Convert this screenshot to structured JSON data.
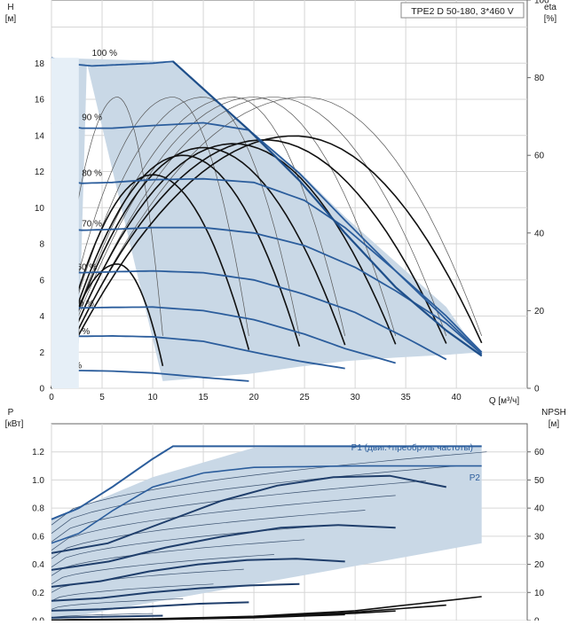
{
  "chart_data": [
    {
      "type": "line",
      "title": "TPE2 D 50-180, 3*460 V",
      "xlabel": "Q [м³/ч]",
      "ylabel_line1": "H",
      "ylabel_line2": "[м]",
      "y2label_line1": "eta",
      "y2label_line2": "[%]",
      "xlim": [
        0,
        47
      ],
      "ylim": [
        0,
        21.5
      ],
      "y2lim": [
        0,
        100
      ],
      "x_ticks": [
        0,
        5,
        10,
        15,
        20,
        25,
        30,
        35,
        40
      ],
      "y_ticks": [
        0,
        2,
        4,
        6,
        8,
        10,
        12,
        14,
        16,
        18
      ],
      "y2_ticks": [
        0,
        20,
        40,
        60,
        80,
        100
      ],
      "grid": true,
      "operating_range": {
        "x": [
          0,
          2.7,
          3.5,
          11,
          19.5,
          24.5,
          29,
          34,
          39,
          42.5,
          42.5,
          39,
          34,
          29,
          24.5,
          19.5,
          12,
          0
        ],
        "y": [
          0,
          2.5,
          18.0,
          0.4,
          0.8,
          1.2,
          1.5,
          1.7,
          1.85,
          2.0,
          1.7,
          4.5,
          7.0,
          9.5,
          12.0,
          14.3,
          18.1,
          18.3
        ]
      },
      "series": [
        {
          "name": "100 %",
          "x": [
            0,
            2,
            4,
            6,
            8,
            10,
            12,
            19.5,
            24.5,
            29,
            34,
            39,
            42.5
          ],
          "y": [
            18.3,
            17.95,
            17.85,
            17.9,
            17.95,
            18.0,
            18.1,
            14.3,
            11.5,
            8.6,
            5.6,
            3.2,
            1.8
          ]
        },
        {
          "name": "90 %",
          "x": [
            0,
            3,
            6,
            10,
            15,
            19.5,
            24.5,
            29,
            34,
            39,
            42.5
          ],
          "y": [
            14.7,
            14.4,
            14.4,
            14.55,
            14.7,
            14.3,
            11.9,
            9.3,
            6.5,
            3.8,
            1.9
          ]
        },
        {
          "name": "80 %",
          "x": [
            0,
            3,
            6,
            10,
            15,
            20,
            25,
            29,
            34,
            39,
            42.5
          ],
          "y": [
            11.6,
            11.35,
            11.4,
            11.55,
            11.6,
            11.4,
            10.4,
            8.9,
            6.5,
            4.0,
            2.0
          ]
        },
        {
          "name": "70 %",
          "x": [
            0,
            3,
            6,
            10,
            15,
            20,
            25,
            30,
            34,
            39,
            42.5
          ],
          "y": [
            8.9,
            8.75,
            8.8,
            8.9,
            8.9,
            8.6,
            7.9,
            6.7,
            5.4,
            3.6,
            1.9
          ]
        },
        {
          "name": "60 %",
          "x": [
            0,
            3,
            6,
            10,
            15,
            20,
            25,
            30,
            35,
            39
          ],
          "y": [
            6.5,
            6.4,
            6.45,
            6.5,
            6.4,
            6.0,
            5.2,
            4.2,
            2.8,
            1.6
          ]
        },
        {
          "name": "50 %",
          "x": [
            0,
            3,
            6,
            10,
            15,
            20,
            25,
            29,
            34
          ],
          "y": [
            4.5,
            4.45,
            4.48,
            4.5,
            4.3,
            3.8,
            3.0,
            2.2,
            1.4
          ]
        },
        {
          "name": "40 %",
          "x": [
            0,
            3,
            6,
            10,
            15,
            20,
            24.5,
            29
          ],
          "y": [
            2.9,
            2.88,
            2.9,
            2.85,
            2.6,
            2.0,
            1.5,
            1.1
          ]
        },
        {
          "name": "22 %",
          "x": [
            0,
            3,
            6,
            10,
            15,
            19.5
          ],
          "y": [
            1.0,
            0.98,
            0.95,
            0.85,
            0.6,
            0.4
          ]
        }
      ],
      "efficiency_curves": {
        "thin": [
          {
            "x0": 0,
            "x1": 11,
            "peak_x": 6.5,
            "peak": 75
          },
          {
            "x0": 0,
            "x1": 19.5,
            "peak_x": 12,
            "peak": 75
          },
          {
            "x0": 0,
            "x1": 24.5,
            "peak_x": 15,
            "peak": 75
          },
          {
            "x0": 0,
            "x1": 29,
            "peak_x": 18,
            "peak": 75
          },
          {
            "x0": 0,
            "x1": 34,
            "peak_x": 20,
            "peak": 75
          },
          {
            "x0": 0,
            "x1": 39,
            "peak_x": 22,
            "peak": 75
          },
          {
            "x0": 0,
            "x1": 42.5,
            "peak_x": 25,
            "peak": 75
          }
        ],
        "thick": [
          {
            "x0": 0,
            "x1": 11,
            "peak_x": 6.5,
            "peak": 32
          },
          {
            "x0": 0,
            "x1": 19.5,
            "peak_x": 10,
            "peak": 55
          },
          {
            "x0": 0,
            "x1": 24.5,
            "peak_x": 13,
            "peak": 60
          },
          {
            "x0": 0,
            "x1": 29,
            "peak_x": 15,
            "peak": 62
          },
          {
            "x0": 0,
            "x1": 34,
            "peak_x": 18,
            "peak": 63
          },
          {
            "x0": 0,
            "x1": 39,
            "peak_x": 21,
            "peak": 64
          },
          {
            "x0": 0,
            "x1": 42.5,
            "peak_x": 24,
            "peak": 65
          }
        ]
      }
    },
    {
      "type": "line",
      "xlabel": "",
      "ylabel_line1": "P",
      "ylabel_line2": "[кВт]",
      "y2label_line1": "NPSH",
      "y2label_line2": "[м]",
      "xlim": [
        0,
        47
      ],
      "ylim": [
        0,
        1.4
      ],
      "y2lim": [
        0,
        70
      ],
      "y_ticks": [
        0.0,
        0.2,
        0.4,
        0.6,
        0.8,
        1.0,
        1.2
      ],
      "y2_ticks": [
        0,
        10,
        20,
        30,
        40,
        50,
        60
      ],
      "grid": true,
      "operating_range": {
        "x": [
          0,
          0,
          2.7,
          10,
          20,
          30,
          37,
          42.5,
          42.5,
          0
        ],
        "y": [
          0.0,
          0.72,
          0.8,
          1.02,
          1.23,
          1.24,
          1.24,
          1.24,
          0.55,
          0.0
        ]
      },
      "series": [
        {
          "name": "P1 (двиг.+преобр-ль частоты)",
          "x": [
            0,
            2.7,
            6,
            10,
            12,
            20,
            30,
            40,
            42.5
          ],
          "y": [
            0.72,
            0.8,
            0.95,
            1.15,
            1.24,
            1.24,
            1.24,
            1.24,
            1.24
          ]
        },
        {
          "name": "P2",
          "x": [
            0,
            2.7,
            6,
            10,
            15,
            20,
            30,
            40,
            42.5
          ],
          "y": [
            0.55,
            0.62,
            0.78,
            0.95,
            1.05,
            1.09,
            1.1,
            1.1,
            1.1
          ]
        }
      ],
      "power_curves_thick": [
        {
          "x1": 39,
          "y": [
            0.48,
            0.55,
            0.7,
            0.85,
            0.96,
            1.02,
            1.03,
            0.95
          ]
        },
        {
          "x1": 34,
          "y": [
            0.36,
            0.42,
            0.52,
            0.6,
            0.66,
            0.68,
            0.66
          ]
        },
        {
          "x1": 29,
          "y": [
            0.24,
            0.28,
            0.35,
            0.4,
            0.43,
            0.44,
            0.42
          ]
        },
        {
          "x1": 24.5,
          "y": [
            0.14,
            0.16,
            0.2,
            0.23,
            0.25,
            0.26
          ]
        },
        {
          "x1": 19.5,
          "y": [
            0.07,
            0.08,
            0.1,
            0.12,
            0.13
          ]
        },
        {
          "x1": 11,
          "y": [
            0.02,
            0.025,
            0.03,
            0.035
          ]
        }
      ],
      "npsh_curves": [
        {
          "x": [
            0,
            10,
            20,
            30,
            42.5
          ],
          "y": [
            0.2,
            0.6,
            1.5,
            3.5,
            8.5
          ]
        },
        {
          "x": [
            0,
            10,
            20,
            30,
            39
          ],
          "y": [
            0.2,
            0.5,
            1.3,
            3.0,
            5.5
          ]
        },
        {
          "x": [
            0,
            10,
            20,
            30,
            34
          ],
          "y": [
            0.2,
            0.45,
            1.1,
            2.6,
            3.4
          ]
        },
        {
          "x": [
            0,
            10,
            20,
            29
          ],
          "y": [
            0.2,
            0.4,
            1.0,
            2.1
          ]
        }
      ]
    }
  ]
}
